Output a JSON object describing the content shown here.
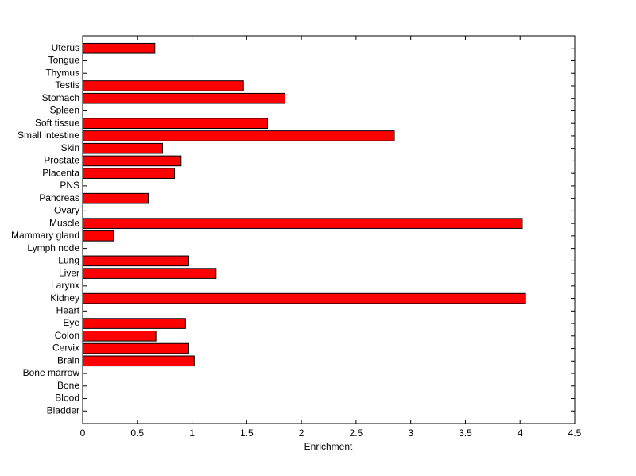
{
  "chart_data": {
    "type": "barh",
    "xlabel": "Enrichment",
    "categories": [
      "Bladder",
      "Blood",
      "Bone",
      "Bone marrow",
      "Brain",
      "Cervix",
      "Colon",
      "Eye",
      "Heart",
      "Kidney",
      "Larynx",
      "Liver",
      "Lung",
      "Lymph node",
      "Mammary gland",
      "Muscle",
      "Ovary",
      "Pancreas",
      "PNS",
      "Placenta",
      "Prostate",
      "Skin",
      "Small intestine",
      "Soft tissue",
      "Spleen",
      "Stomach",
      "Testis",
      "Thymus",
      "Tongue",
      "Uterus"
    ],
    "values": [
      0,
      0,
      0,
      0,
      1.02,
      0.97,
      0.67,
      0.94,
      0,
      4.05,
      0,
      1.22,
      0.97,
      0,
      0.28,
      4.02,
      0,
      0.6,
      0,
      0.84,
      0.9,
      0.73,
      2.85,
      1.69,
      0,
      1.85,
      1.47,
      0,
      0,
      0.66
    ],
    "color": "#ff0000",
    "xlim": [
      0,
      4.5
    ],
    "xticks": [
      0,
      0.5,
      1,
      1.5,
      2,
      2.5,
      3,
      3.5,
      4,
      4.5
    ],
    "grid": false
  }
}
